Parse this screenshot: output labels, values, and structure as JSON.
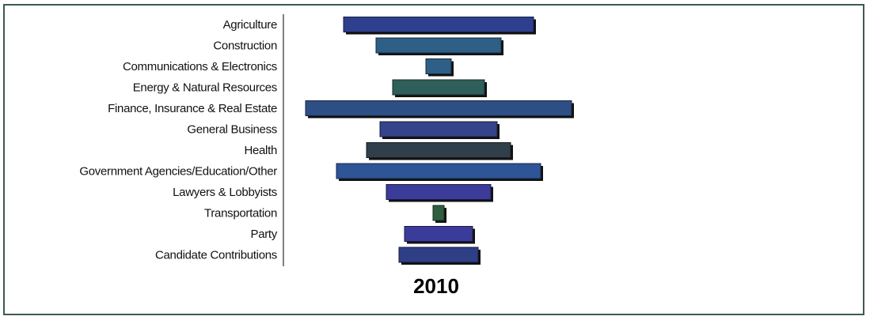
{
  "chart_data": {
    "type": "bar",
    "orientation": "horizontal",
    "style": "centered-funnel",
    "title": "2010",
    "categories": [
      "Agriculture",
      "Construction",
      "Communications & Electronics",
      "Energy & Natural Resources",
      "Finance, Insurance & Real Estate",
      "General Business",
      "Health",
      "Government Agencies/Education/Other",
      "Lawyers & Lobbyists",
      "Transportation",
      "Party",
      "Candidate Contributions"
    ],
    "values": [
      240,
      158,
      32,
      116,
      336,
      148,
      182,
      258,
      132,
      14,
      86,
      100
    ],
    "colors": [
      "#2e3f8e",
      "#2e5f86",
      "#2e5f86",
      "#2e5f5a",
      "#2e4f86",
      "#34438a",
      "#303f4a",
      "#2e5596",
      "#3b3b9a",
      "#2e5f3e",
      "#3b3b9a",
      "#2e3f86"
    ],
    "grid": false,
    "legend": "none"
  }
}
